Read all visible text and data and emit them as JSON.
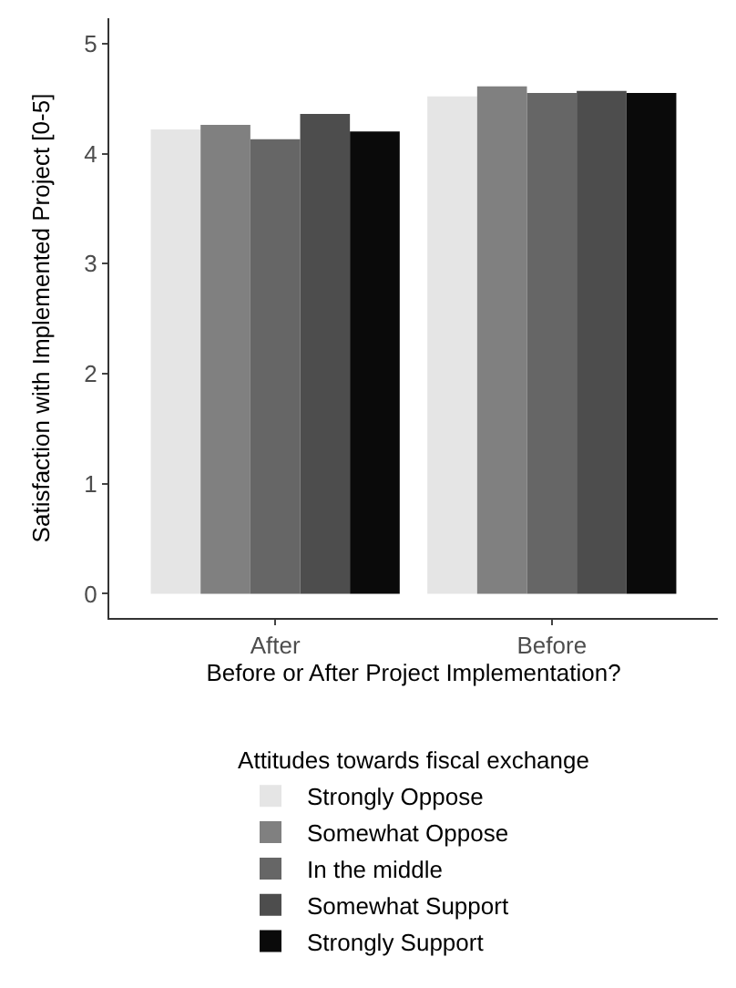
{
  "chart_data": {
    "type": "bar",
    "xlabel": "Before or After Project Implementation?",
    "ylabel": "Satisfaction with Implemented Project [0-5]",
    "legend_title": "Attitudes towards fiscal exchange",
    "categories": [
      "After",
      "Before"
    ],
    "series": [
      {
        "name": "Strongly Oppose",
        "color": "#e5e5e5",
        "values": [
          4.22,
          4.52
        ]
      },
      {
        "name": "Somewhat Oppose",
        "color": "#808080",
        "values": [
          4.26,
          4.61
        ]
      },
      {
        "name": "In the middle",
        "color": "#666666",
        "values": [
          4.13,
          4.55
        ]
      },
      {
        "name": "Somewhat Support",
        "color": "#4d4d4d",
        "values": [
          4.36,
          4.57
        ]
      },
      {
        "name": "Strongly Support",
        "color": "#0a0a0a",
        "values": [
          4.2,
          4.55
        ]
      }
    ],
    "ylim": [
      -0.22,
      5.23
    ],
    "yticks": [
      0,
      1,
      2,
      3,
      4,
      5
    ],
    "legend": "bottom"
  }
}
